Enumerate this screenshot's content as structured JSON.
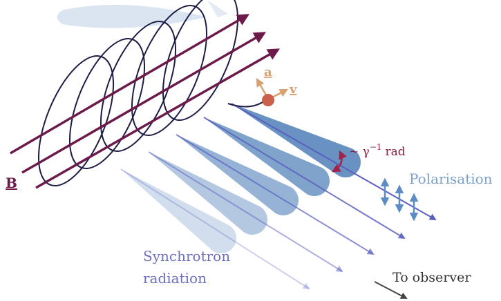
{
  "labels": {
    "acceleration": "a",
    "velocity": "v",
    "field": "B",
    "beam_width": "~ γ",
    "beam_exponent": "−1",
    "beam_unit": "rad",
    "polarisation": "Polarisation",
    "synchrotron": [
      "Synchrotron",
      "radiation"
    ],
    "observer": "To observer"
  }
}
